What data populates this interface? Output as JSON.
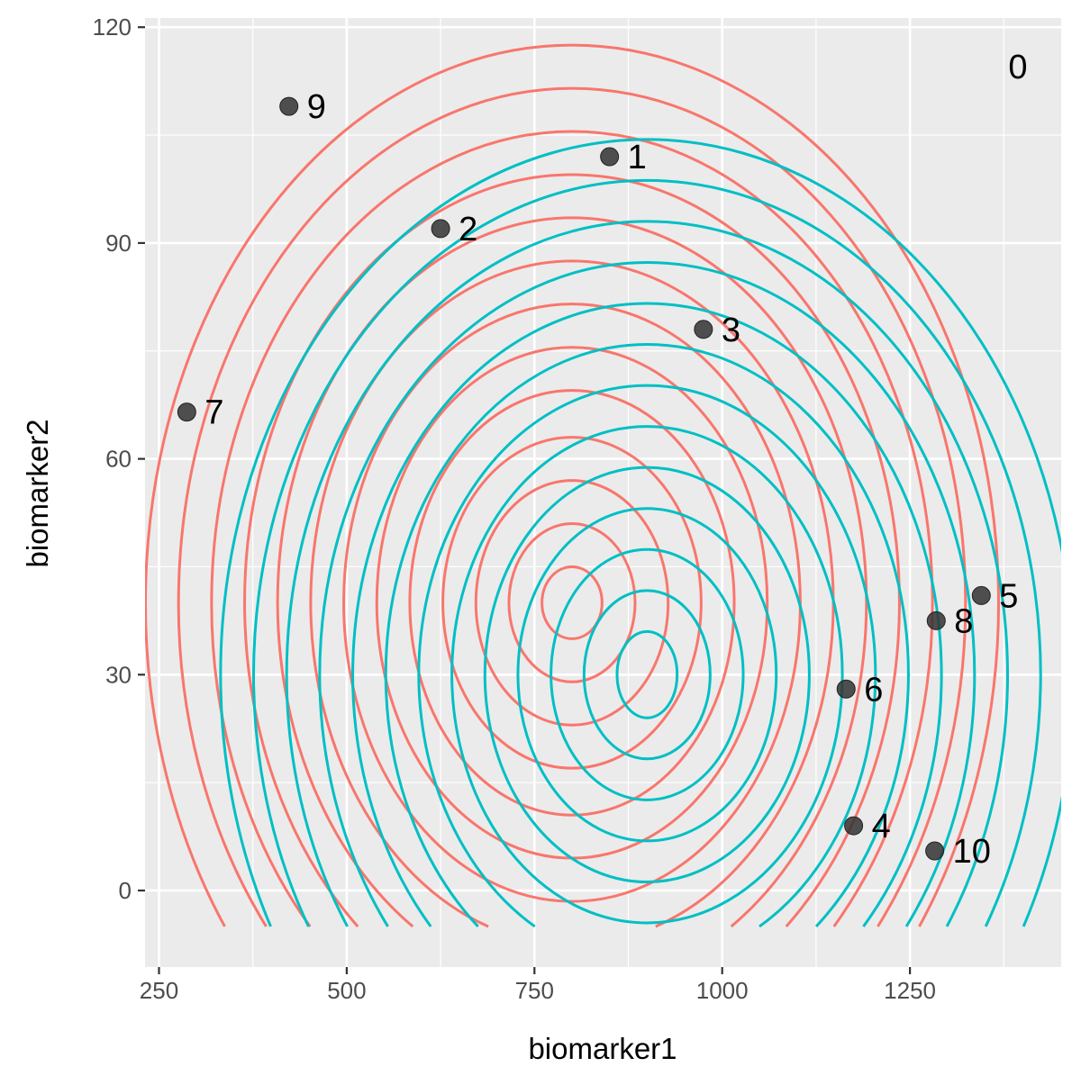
{
  "chart_data": {
    "type": "scatter",
    "title": "",
    "xlabel": "biomarker1",
    "ylabel": "biomarker2",
    "xlim": [
      240,
      1450
    ],
    "ylim": [
      -10,
      121
    ],
    "x_ticks": [
      250,
      500,
      750,
      1000,
      1250
    ],
    "y_ticks": [
      0,
      30,
      60,
      90,
      120
    ],
    "grid": true,
    "legend": "none",
    "panel_tag": "0",
    "points": [
      {
        "label": "1",
        "x": 850,
        "y": 102
      },
      {
        "label": "2",
        "x": 625,
        "y": 92
      },
      {
        "label": "3",
        "x": 975,
        "y": 78
      },
      {
        "label": "4",
        "x": 1175,
        "y": 9
      },
      {
        "label": "5",
        "x": 1345,
        "y": 41
      },
      {
        "label": "6",
        "x": 1165,
        "y": 28
      },
      {
        "label": "7",
        "x": 287,
        "y": 66.5
      },
      {
        "label": "8",
        "x": 1285,
        "y": 37.5
      },
      {
        "label": "9",
        "x": 423,
        "y": 109
      },
      {
        "label": "10",
        "x": 1283,
        "y": 5.5
      }
    ],
    "point_color": "#333333",
    "contours": [
      {
        "color": "#F8766D",
        "center": [
          800,
          40
        ],
        "radii_x": [
          40,
          84,
          128,
          172,
          216,
          260,
          304,
          348,
          392,
          436,
          480,
          524,
          568
        ],
        "radii_y": [
          5,
          11,
          17,
          23,
          29.5,
          35.5,
          41.5,
          47.5,
          53.5,
          59.5,
          65.5,
          71.5,
          77.5
        ]
      },
      {
        "color": "#00BFC4",
        "center": [
          900,
          30
        ],
        "radii_x": [
          40,
          84,
          128,
          172,
          216,
          260,
          304,
          348,
          392,
          436,
          480,
          524,
          568
        ],
        "radii_y": [
          6,
          11.7,
          17.4,
          23.1,
          28.8,
          34.5,
          40.2,
          45.9,
          51.6,
          57.3,
          63,
          68.7,
          74.4
        ]
      }
    ]
  }
}
